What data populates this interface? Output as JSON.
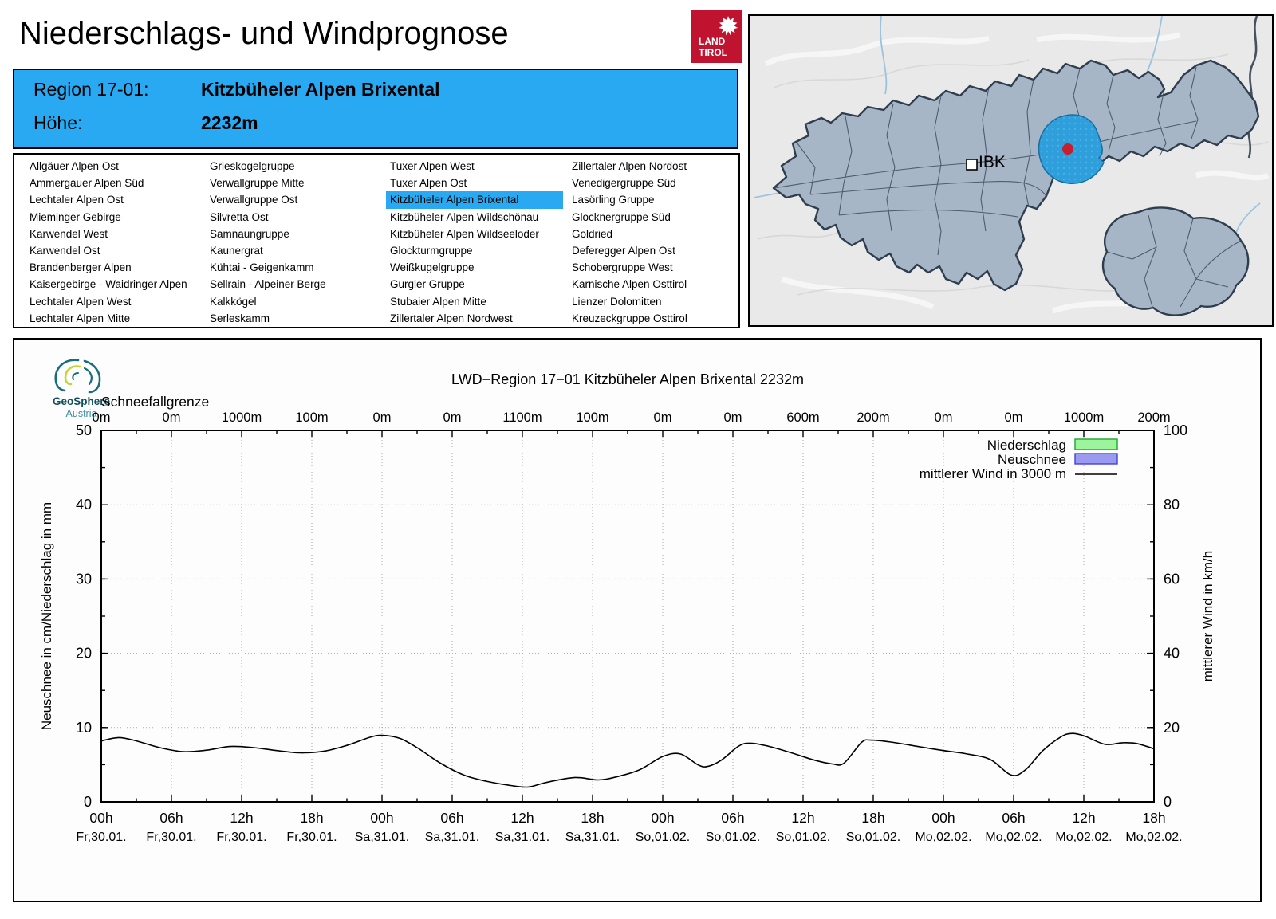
{
  "page": {
    "title": "Niederschlags- und Windprognose"
  },
  "logos": {
    "land_tirol": {
      "line1": "LAND",
      "line2": "TIROL",
      "color": "#bf1330"
    },
    "geosphere": {
      "name": "GeoSphere",
      "sub": "Austria",
      "teal": "#176d7d",
      "green": "#c3d62f"
    }
  },
  "region_header": {
    "region_label": "Region 17-01:",
    "region_name": "Kitzbüheler Alpen Brixental",
    "altitude_label": "Höhe:",
    "altitude_value": "2232m",
    "background": "#29a9f1"
  },
  "region_list": {
    "selected": "Kitzbüheler Alpen Brixental",
    "highlight_color": "#29a9f1",
    "columns": [
      [
        "Allgäuer Alpen Ost",
        "Ammergauer Alpen Süd",
        "Lechtaler Alpen Ost",
        "Mieminger Gebirge",
        "Karwendel West",
        "Karwendel Ost",
        "Brandenberger Alpen",
        "Kaisergebirge - Waidringer Alpen",
        "Lechtaler Alpen West",
        "Lechtaler Alpen Mitte"
      ],
      [
        "Grieskogelgruppe",
        "Verwallgruppe Mitte",
        "Verwallgruppe Ost",
        "Silvretta Ost",
        "Samnaungruppe",
        "Kaunergrat",
        "Kühtai - Geigenkamm",
        "Sellrain - Alpeiner Berge",
        "Kalkkögel",
        "Serleskamm"
      ],
      [
        "Tuxer Alpen West",
        "Tuxer Alpen Ost",
        "Kitzbüheler Alpen Brixental",
        "Kitzbüheler Alpen Wildschönau",
        "Kitzbüheler Alpen Wildseeloder",
        "Glockturmgruppe",
        "Weißkugelgruppe",
        "Gurgler Gruppe",
        "Stubaier Alpen Mitte",
        "Zillertaler Alpen Nordwest"
      ],
      [
        "Zillertaler Alpen Nordost",
        "Venedigergruppe Süd",
        "Lasörling Gruppe",
        "Glocknergruppe Süd",
        "Goldried",
        "Deferegger Alpen Ost",
        "Schobergruppe West",
        "Karnische Alpen Osttirol",
        "Lienzer Dolomitten",
        "Kreuzeckgruppe Osttirol"
      ]
    ]
  },
  "map": {
    "city_label": "IBK",
    "highlight_color": "#2f9fdc",
    "marker_color": "#c51f30",
    "region_fill": "#a7b6c6"
  },
  "chart_data": {
    "type": "line",
    "title": "LWD−Region 17−01 Kitzbüheler Alpen Brixental 2232m",
    "schneefallgrenze": {
      "label": "Schneefallgrenze",
      "values": [
        "0m",
        "0m",
        "1000m",
        "100m",
        "0m",
        "0m",
        "1100m",
        "100m",
        "0m",
        "0m",
        "600m",
        "200m",
        "0m",
        "0m",
        "1000m",
        "200m"
      ]
    },
    "left_axis": {
      "label": "Neuschnee in cm/Niederschlag in mm",
      "range": [
        0,
        50
      ],
      "ticks": [
        0,
        10,
        20,
        30,
        40,
        50
      ]
    },
    "right_axis": {
      "label": "mittlerer Wind in km/h",
      "range": [
        0,
        100
      ],
      "ticks": [
        0,
        20,
        40,
        60,
        80,
        100
      ]
    },
    "x_axis": {
      "range_hours": [
        0,
        90
      ],
      "major_step_hours": 6,
      "minor_step_hours": 3,
      "grid": true
    },
    "x_ticks": [
      {
        "time": "00h",
        "date": "Fr,30.01."
      },
      {
        "time": "06h",
        "date": "Fr,30.01."
      },
      {
        "time": "12h",
        "date": "Fr,30.01."
      },
      {
        "time": "18h",
        "date": "Fr,30.01."
      },
      {
        "time": "00h",
        "date": "Sa,31.01."
      },
      {
        "time": "06h",
        "date": "Sa,31.01."
      },
      {
        "time": "12h",
        "date": "Sa,31.01."
      },
      {
        "time": "18h",
        "date": "Sa,31.01."
      },
      {
        "time": "00h",
        "date": "So,01.02."
      },
      {
        "time": "06h",
        "date": "So,01.02."
      },
      {
        "time": "12h",
        "date": "So,01.02."
      },
      {
        "time": "18h",
        "date": "So,01.02."
      },
      {
        "time": "00h",
        "date": "Mo,02.02."
      },
      {
        "time": "06h",
        "date": "Mo,02.02."
      },
      {
        "time": "12h",
        "date": "Mo,02.02."
      },
      {
        "time": "18h",
        "date": "Mo,02.02."
      }
    ],
    "legend": [
      {
        "label": "Niederschlag",
        "type": "box",
        "fill": "#9cf59c",
        "border": "#22a32a"
      },
      {
        "label": "Neuschnee",
        "type": "box",
        "fill": "#9a9af0",
        "border": "#4343d6"
      },
      {
        "label": "mittlerer Wind in 3000 m",
        "type": "line",
        "color": "#000000"
      }
    ],
    "series": [
      {
        "name": "Niederschlag",
        "unit": "mm",
        "axis": "left",
        "all_zero": true
      },
      {
        "name": "Neuschnee",
        "unit": "cm",
        "axis": "left",
        "all_zero": true
      },
      {
        "name": "mittlerer Wind in 3000 m",
        "unit": "km/h",
        "axis": "right",
        "points": [
          [
            0,
            16.4
          ],
          [
            1.5,
            17.3
          ],
          [
            3,
            16.4
          ],
          [
            5,
            14.6
          ],
          [
            7,
            13.5
          ],
          [
            9,
            13.9
          ],
          [
            11,
            14.9
          ],
          [
            13,
            14.6
          ],
          [
            15,
            13.8
          ],
          [
            17,
            13.2
          ],
          [
            19,
            13.6
          ],
          [
            21,
            15.2
          ],
          [
            23,
            17.4
          ],
          [
            24,
            17.9
          ],
          [
            25.5,
            17.1
          ],
          [
            27,
            14.6
          ],
          [
            29,
            10.4
          ],
          [
            31,
            7.2
          ],
          [
            33,
            5.5
          ],
          [
            35,
            4.4
          ],
          [
            36.5,
            4.0
          ],
          [
            38,
            5.2
          ],
          [
            40,
            6.4
          ],
          [
            41,
            6.5
          ],
          [
            42.5,
            5.9
          ],
          [
            44,
            6.7
          ],
          [
            46,
            8.6
          ],
          [
            48,
            12.2
          ],
          [
            49.5,
            12.9
          ],
          [
            51,
            10.0
          ],
          [
            51.8,
            9.5
          ],
          [
            53,
            11.2
          ],
          [
            54.5,
            15.0
          ],
          [
            55.5,
            15.8
          ],
          [
            57,
            15.0
          ],
          [
            59,
            13.2
          ],
          [
            61,
            11.2
          ],
          [
            62.5,
            10.2
          ],
          [
            63.5,
            10.4
          ],
          [
            65,
            16.0
          ],
          [
            65.8,
            16.6
          ],
          [
            67.5,
            16.1
          ],
          [
            70,
            14.8
          ],
          [
            72,
            13.8
          ],
          [
            74,
            12.9
          ],
          [
            76,
            11.4
          ],
          [
            77.8,
            7.2
          ],
          [
            79,
            8.6
          ],
          [
            80.5,
            13.8
          ],
          [
            82,
            17.4
          ],
          [
            82.9,
            18.4
          ],
          [
            84,
            17.8
          ],
          [
            85.8,
            15.5
          ],
          [
            87.3,
            15.9
          ],
          [
            88.5,
            15.7
          ],
          [
            90,
            14.3
          ]
        ]
      }
    ]
  }
}
